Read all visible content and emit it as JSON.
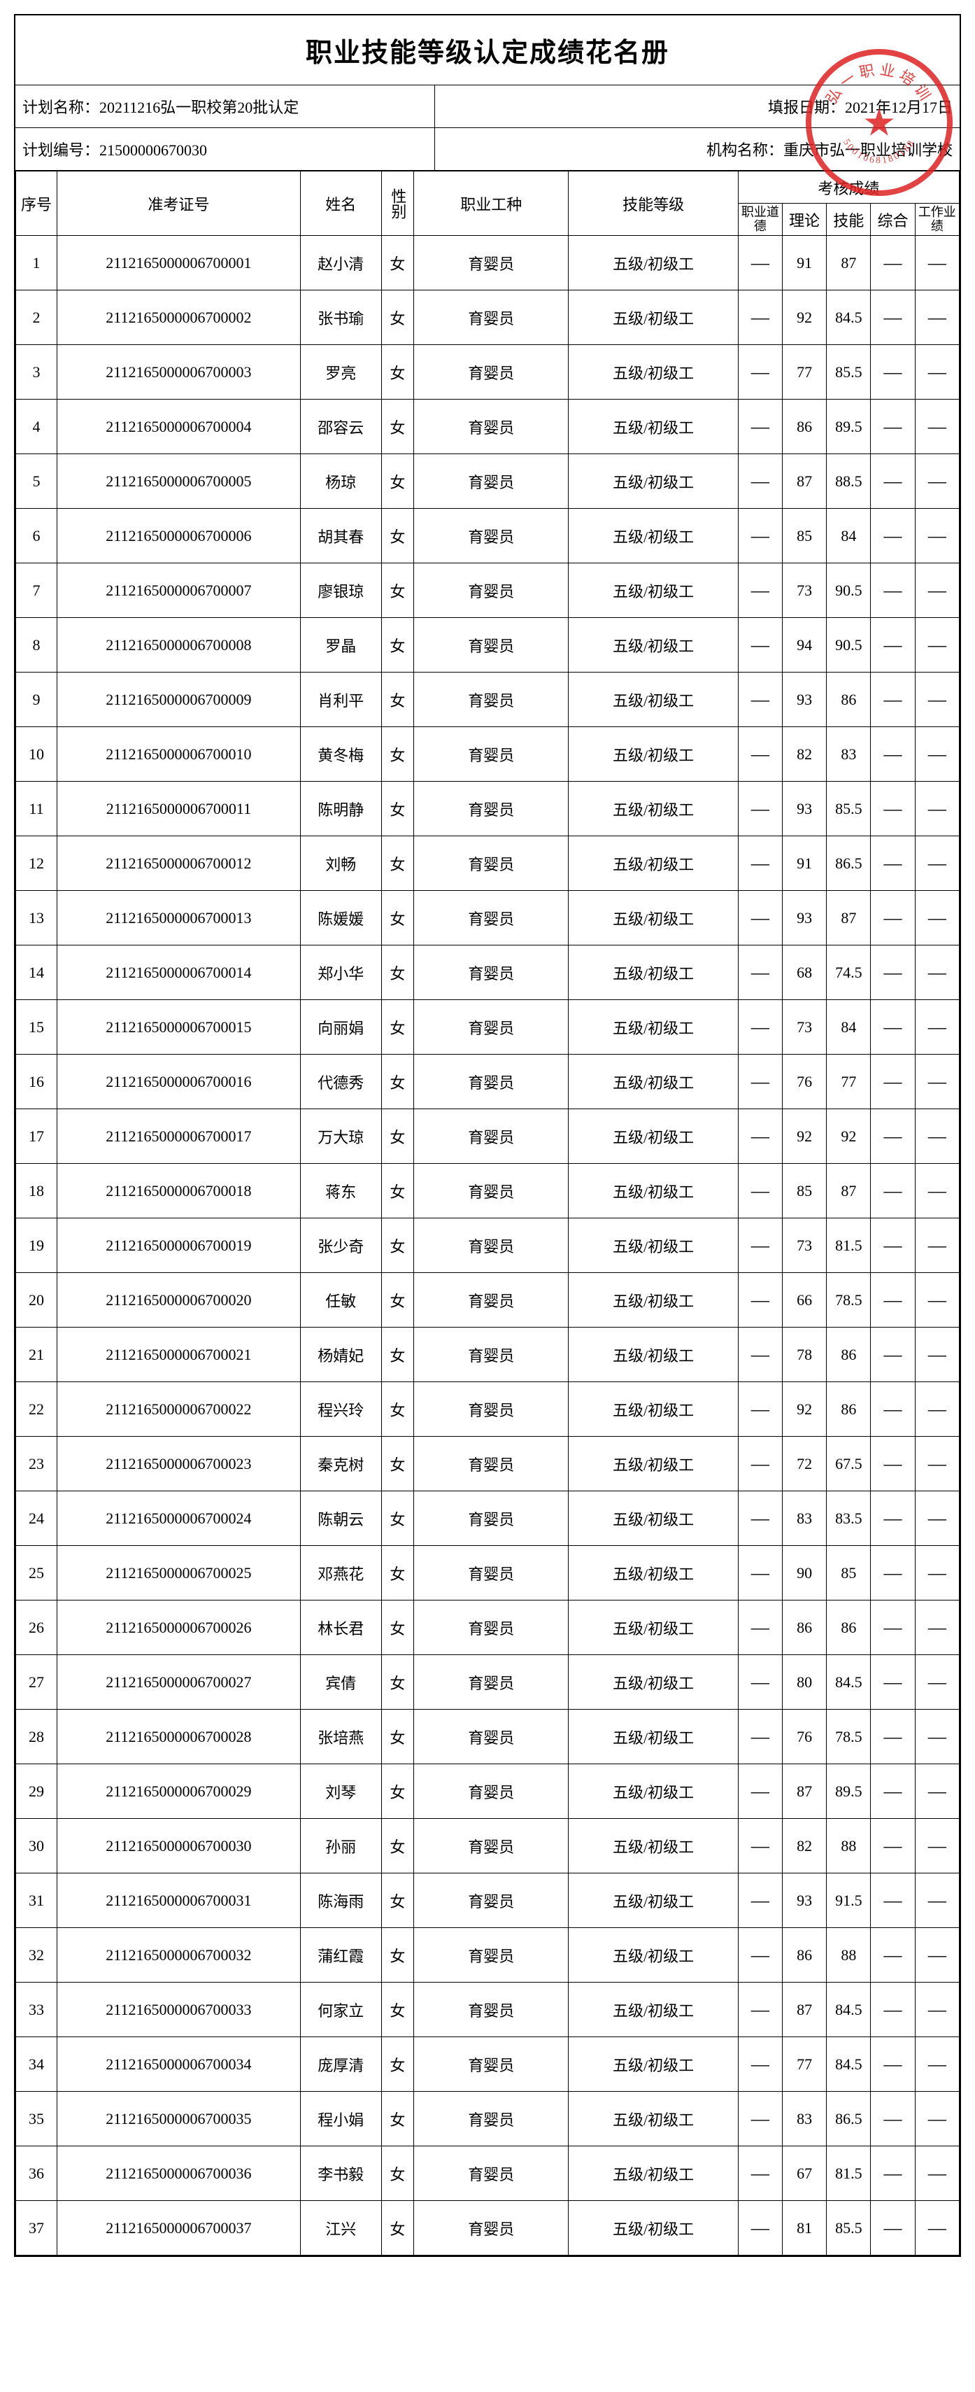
{
  "title": "职业技能等级认定成绩花名册",
  "meta": {
    "plan_name_label": "计划名称：",
    "plan_name": "20211216弘一职校第20批认定",
    "report_date_label": "填报日期：",
    "report_date": "2021年12月17日",
    "plan_no_label": "计划编号：",
    "plan_no": "21500000670030",
    "org_label": "机构名称：",
    "org": "重庆市弘一职业培训学校"
  },
  "headers": {
    "seq": "序号",
    "exam_no": "准考证号",
    "name": "姓名",
    "sex": "性别",
    "job": "职业工种",
    "level": "技能等级",
    "score_group": "考核成绩",
    "ethics": "职业道德",
    "theory": "理论",
    "skill": "技能",
    "comp": "综合",
    "work": "工作业绩"
  },
  "dash": "—",
  "common": {
    "sex": "女",
    "job": "育婴员",
    "level": "五级/初级工"
  },
  "rows": [
    {
      "seq": 1,
      "exam": "2112165000006700001",
      "name": "赵小清",
      "theory": 91,
      "skill": 87
    },
    {
      "seq": 2,
      "exam": "2112165000006700002",
      "name": "张书瑜",
      "theory": 92,
      "skill": 84.5
    },
    {
      "seq": 3,
      "exam": "2112165000006700003",
      "name": "罗亮",
      "theory": 77,
      "skill": 85.5
    },
    {
      "seq": 4,
      "exam": "2112165000006700004",
      "name": "邵容云",
      "theory": 86,
      "skill": 89.5
    },
    {
      "seq": 5,
      "exam": "2112165000006700005",
      "name": "杨琼",
      "theory": 87,
      "skill": 88.5
    },
    {
      "seq": 6,
      "exam": "2112165000006700006",
      "name": "胡其春",
      "theory": 85,
      "skill": 84
    },
    {
      "seq": 7,
      "exam": "2112165000006700007",
      "name": "廖银琼",
      "theory": 73,
      "skill": 90.5
    },
    {
      "seq": 8,
      "exam": "2112165000006700008",
      "name": "罗晶",
      "theory": 94,
      "skill": 90.5
    },
    {
      "seq": 9,
      "exam": "2112165000006700009",
      "name": "肖利平",
      "theory": 93,
      "skill": 86
    },
    {
      "seq": 10,
      "exam": "2112165000006700010",
      "name": "黄冬梅",
      "theory": 82,
      "skill": 83
    },
    {
      "seq": 11,
      "exam": "2112165000006700011",
      "name": "陈明静",
      "theory": 93,
      "skill": 85.5
    },
    {
      "seq": 12,
      "exam": "2112165000006700012",
      "name": "刘畅",
      "theory": 91,
      "skill": 86.5
    },
    {
      "seq": 13,
      "exam": "2112165000006700013",
      "name": "陈媛媛",
      "theory": 93,
      "skill": 87
    },
    {
      "seq": 14,
      "exam": "2112165000006700014",
      "name": "郑小华",
      "theory": 68,
      "skill": 74.5
    },
    {
      "seq": 15,
      "exam": "2112165000006700015",
      "name": "向丽娟",
      "theory": 73,
      "skill": 84
    },
    {
      "seq": 16,
      "exam": "2112165000006700016",
      "name": "代德秀",
      "theory": 76,
      "skill": 77
    },
    {
      "seq": 17,
      "exam": "2112165000006700017",
      "name": "万大琼",
      "theory": 92,
      "skill": 92
    },
    {
      "seq": 18,
      "exam": "2112165000006700018",
      "name": "蒋东",
      "theory": 85,
      "skill": 87
    },
    {
      "seq": 19,
      "exam": "2112165000006700019",
      "name": "张少奇",
      "theory": 73,
      "skill": 81.5
    },
    {
      "seq": 20,
      "exam": "2112165000006700020",
      "name": "任敏",
      "theory": 66,
      "skill": 78.5
    },
    {
      "seq": 21,
      "exam": "2112165000006700021",
      "name": "杨婧妃",
      "theory": 78,
      "skill": 86
    },
    {
      "seq": 22,
      "exam": "2112165000006700022",
      "name": "程兴玲",
      "theory": 92,
      "skill": 86
    },
    {
      "seq": 23,
      "exam": "2112165000006700023",
      "name": "秦克树",
      "theory": 72,
      "skill": 67.5
    },
    {
      "seq": 24,
      "exam": "2112165000006700024",
      "name": "陈朝云",
      "theory": 83,
      "skill": 83.5
    },
    {
      "seq": 25,
      "exam": "2112165000006700025",
      "name": "邓燕花",
      "theory": 90,
      "skill": 85
    },
    {
      "seq": 26,
      "exam": "2112165000006700026",
      "name": "林长君",
      "theory": 86,
      "skill": 86
    },
    {
      "seq": 27,
      "exam": "2112165000006700027",
      "name": "宾倩",
      "theory": 80,
      "skill": 84.5
    },
    {
      "seq": 28,
      "exam": "2112165000006700028",
      "name": "张培燕",
      "theory": 76,
      "skill": 78.5
    },
    {
      "seq": 29,
      "exam": "2112165000006700029",
      "name": "刘琴",
      "theory": 87,
      "skill": 89.5
    },
    {
      "seq": 30,
      "exam": "2112165000006700030",
      "name": "孙丽",
      "theory": 82,
      "skill": 88
    },
    {
      "seq": 31,
      "exam": "2112165000006700031",
      "name": "陈海雨",
      "theory": 93,
      "skill": 91.5
    },
    {
      "seq": 32,
      "exam": "2112165000006700032",
      "name": "蒲红霞",
      "theory": 86,
      "skill": 88
    },
    {
      "seq": 33,
      "exam": "2112165000006700033",
      "name": "何家立",
      "theory": 87,
      "skill": 84.5
    },
    {
      "seq": 34,
      "exam": "2112165000006700034",
      "name": "庞厚清",
      "theory": 77,
      "skill": 84.5
    },
    {
      "seq": 35,
      "exam": "2112165000006700035",
      "name": "程小娟",
      "theory": 83,
      "skill": 86.5
    },
    {
      "seq": 36,
      "exam": "2112165000006700036",
      "name": "李书毅",
      "theory": 67,
      "skill": 81.5
    },
    {
      "seq": 37,
      "exam": "2112165000006700037",
      "name": "江兴",
      "theory": 81,
      "skill": 85.5
    }
  ],
  "stamp": {
    "top_text": "弘一职业培训",
    "bottom_text": "5001068180188",
    "color": "#d22222"
  }
}
